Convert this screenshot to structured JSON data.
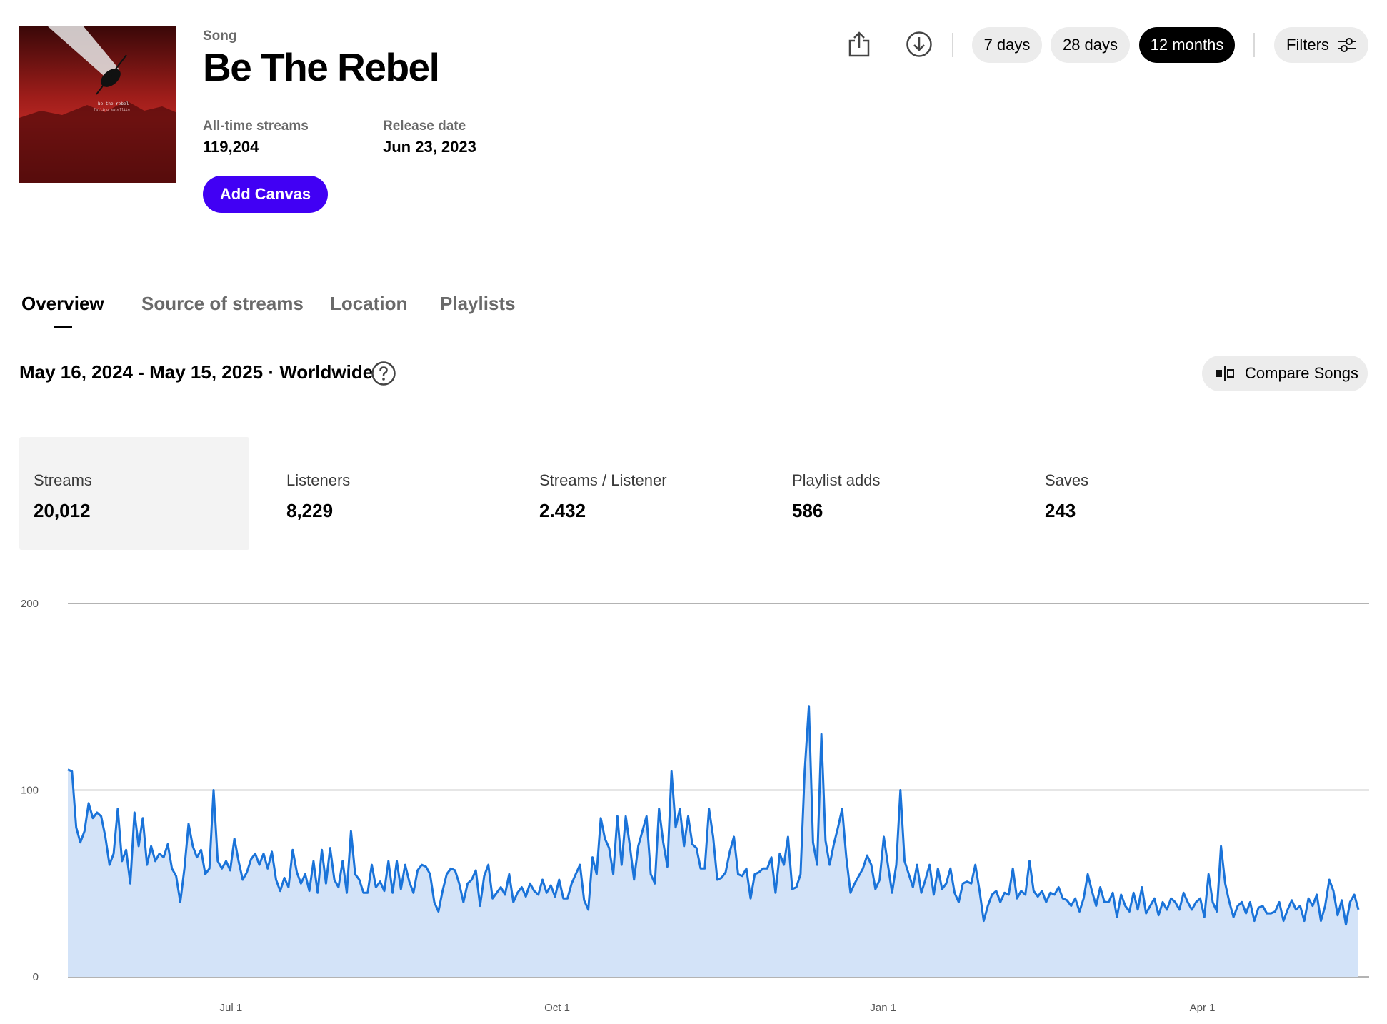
{
  "song": {
    "eyebrow": "Song",
    "title": "Be The Rebel",
    "cover_text_line1": "be the rebel",
    "cover_text_line2": "falling satellite",
    "all_time_label": "All-time streams",
    "all_time_value": "119,204",
    "release_label": "Release date",
    "release_value": "Jun 23, 2023",
    "add_canvas_label": "Add Canvas"
  },
  "toolbar": {
    "share_icon": "share-icon",
    "download_icon": "download-icon",
    "ranges": [
      {
        "label": "7 days",
        "active": false
      },
      {
        "label": "28 days",
        "active": false
      },
      {
        "label": "12 months",
        "active": true
      }
    ],
    "filters_label": "Filters",
    "filters_icon": "sliders-icon"
  },
  "tabs": [
    {
      "label": "Overview",
      "active": true
    },
    {
      "label": "Source of streams",
      "active": false
    },
    {
      "label": "Location",
      "active": false
    },
    {
      "label": "Playlists",
      "active": false
    }
  ],
  "range_text": "May 16, 2024 - May 15, 2025 · Worldwide",
  "help_icon": "help-circle-icon",
  "compare_label": "Compare Songs",
  "compare_icon": "compare-icon",
  "metrics": [
    {
      "label": "Streams",
      "value": "20,012",
      "active": true
    },
    {
      "label": "Listeners",
      "value": "8,229",
      "active": false
    },
    {
      "label": "Streams / Listener",
      "value": "2.432",
      "active": false
    },
    {
      "label": "Playlist adds",
      "value": "586",
      "active": false
    },
    {
      "label": "Saves",
      "value": "243",
      "active": false
    }
  ],
  "colors": {
    "accent": "#4100f4",
    "line": "#1a73d9",
    "fill": "#d3e3f8"
  },
  "chart_data": {
    "type": "area",
    "x_start": "2024-05-16",
    "x_end": "2025-05-15",
    "ylim": [
      0,
      200
    ],
    "yticks": [
      0,
      100,
      200
    ],
    "ytick_labels": [
      "0",
      "100",
      "200"
    ],
    "xtick_labels": [
      "Jul 1",
      "Oct 1",
      "Jan 1",
      "Apr 1"
    ],
    "xtick_dates": [
      "2024-07-01",
      "2024-10-01",
      "2025-01-01",
      "2025-04-01"
    ],
    "grid": true,
    "series": [
      {
        "values": [
          111,
          110,
          80,
          72,
          78,
          93,
          85,
          88,
          86,
          75,
          60,
          66,
          90,
          62,
          68,
          50,
          88,
          70,
          85,
          60,
          70,
          62,
          66,
          64,
          71,
          58,
          54,
          40,
          58,
          82,
          70,
          64,
          68,
          55,
          58,
          100,
          62,
          58,
          62,
          57,
          74,
          62,
          52,
          56,
          63,
          66,
          60,
          66,
          58,
          67,
          52,
          46,
          53,
          48,
          68,
          56,
          50,
          55,
          46,
          62,
          45,
          68,
          50,
          69,
          52,
          48,
          62,
          45,
          78,
          55,
          52,
          45,
          45,
          60,
          48,
          51,
          46,
          62,
          45,
          62,
          47,
          60,
          51,
          45,
          57,
          60,
          59,
          55,
          40,
          35,
          46,
          55,
          58,
          57,
          50,
          40,
          50,
          52,
          57,
          38,
          54,
          60,
          42,
          45,
          48,
          44,
          55,
          40,
          45,
          48,
          43,
          50,
          46,
          44,
          52,
          45,
          49,
          43,
          52,
          42,
          42,
          50,
          55,
          60,
          41,
          36,
          64,
          55,
          85,
          74,
          69,
          55,
          86,
          60,
          86,
          70,
          52,
          70,
          78,
          86,
          55,
          50,
          90,
          72,
          59,
          110,
          80,
          90,
          70,
          86,
          71,
          69,
          58,
          58,
          90,
          75,
          52,
          53,
          56,
          67,
          75,
          55,
          54,
          58,
          42,
          55,
          56,
          58,
          58,
          64,
          45,
          66,
          60,
          75,
          47,
          48,
          55,
          110,
          145,
          72,
          60,
          130,
          73,
          60,
          71,
          80,
          90,
          64,
          45,
          50,
          54,
          58,
          65,
          60,
          47,
          52,
          75,
          60,
          45,
          60,
          100,
          62,
          55,
          48,
          60,
          45,
          52,
          60,
          44,
          58,
          47,
          50,
          58,
          45,
          40,
          50,
          51,
          50,
          60,
          46,
          30,
          38,
          44,
          46,
          40,
          45,
          44,
          58,
          42,
          46,
          44,
          62,
          46,
          43,
          46,
          40,
          45,
          44,
          48,
          42,
          41,
          38,
          42,
          35,
          42,
          55,
          46,
          38,
          48,
          40,
          40,
          45,
          32,
          44,
          38,
          35,
          45,
          36,
          48,
          34,
          38,
          42,
          33,
          40,
          36,
          42,
          40,
          36,
          45,
          40,
          36,
          40,
          42,
          32,
          55,
          40,
          35,
          70,
          50,
          40,
          32,
          38,
          40,
          34,
          40,
          30,
          37,
          38,
          34,
          34,
          35,
          40,
          30,
          36,
          41,
          36,
          38,
          30,
          42,
          38,
          44,
          30,
          38,
          52,
          46,
          33,
          41,
          28,
          40,
          44,
          36
        ]
      }
    ]
  }
}
